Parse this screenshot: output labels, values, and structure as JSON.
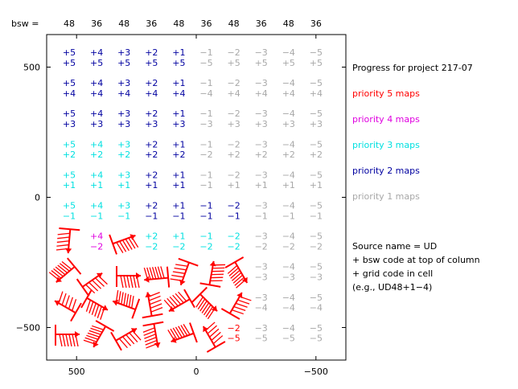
{
  "chart_data": {
    "type": "table",
    "bsw_label": "bsw =",
    "bsw_codes": [
      "48",
      "36",
      "48",
      "36",
      "48",
      "36",
      "48",
      "36",
      "48",
      "36"
    ],
    "grid_codes": [
      [
        "+5",
        "+4",
        "+3",
        "+2",
        "+1",
        "−1",
        "−2",
        "−3",
        "−4",
        "−5"
      ],
      [
        "+5",
        "+5",
        "+5",
        "+5",
        "+5",
        "−5",
        "+5",
        "+5",
        "+5",
        "+5"
      ],
      [
        "+5",
        "+4",
        "+3",
        "+2",
        "+1",
        "−1",
        "−2",
        "−3",
        "−4",
        "−5"
      ],
      [
        "+4",
        "+4",
        "+4",
        "+4",
        "+4",
        "−4",
        "+4",
        "+4",
        "+4",
        "+4"
      ],
      [
        "+5",
        "+4",
        "+3",
        "+2",
        "+1",
        "−1",
        "−2",
        "−3",
        "−4",
        "−5"
      ],
      [
        "+3",
        "+3",
        "+3",
        "+3",
        "+3",
        "−3",
        "+3",
        "+3",
        "+3",
        "+3"
      ],
      [
        "+5",
        "+4",
        "+3",
        "+2",
        "+1",
        "−1",
        "−2",
        "−3",
        "−4",
        "−5"
      ],
      [
        "+2",
        "+2",
        "+2",
        "+2",
        "+2",
        "−2",
        "+2",
        "+2",
        "+2",
        "+2"
      ],
      [
        "+5",
        "+4",
        "+3",
        "+2",
        "+1",
        "−1",
        "−2",
        "−3",
        "−4",
        "−5"
      ],
      [
        "+1",
        "+1",
        "+1",
        "+1",
        "+1",
        "−1",
        "+1",
        "+1",
        "+1",
        "+1"
      ],
      [
        "+5",
        "+4",
        "+3",
        "+2",
        "+1",
        "−1",
        "−2",
        "−3",
        "−4",
        "−5"
      ],
      [
        "−1",
        "−1",
        "−1",
        "−1",
        "−1",
        "−1",
        "−1",
        "−1",
        "−1",
        "−1"
      ],
      [
        "",
        "+4",
        "",
        "+2",
        "+1",
        "−1",
        "−2",
        "−3",
        "−4",
        "−5"
      ],
      [
        "",
        "−2",
        "",
        "−2",
        "−2",
        "−2",
        "−2",
        "−2",
        "−2",
        "−2"
      ],
      [
        "",
        "",
        "",
        "",
        "",
        "",
        "",
        "−3",
        "−4",
        "−5"
      ],
      [
        "",
        "",
        "",
        "",
        "",
        "",
        "",
        "−3",
        "−3",
        "−3"
      ],
      [
        "",
        "",
        "",
        "",
        "",
        "",
        "",
        "−3",
        "−4",
        "−5"
      ],
      [
        "",
        "",
        "",
        "",
        "",
        "",
        "",
        "−4",
        "−4",
        "−4"
      ],
      [
        "",
        "",
        "",
        "",
        "",
        "",
        "−2",
        "−3",
        "−4",
        "−5"
      ],
      [
        "",
        "",
        "",
        "",
        "",
        "",
        "−5",
        "−5",
        "−5",
        "−5"
      ]
    ],
    "cell_priority": [
      [
        2,
        2,
        2,
        2,
        2,
        1,
        1,
        1,
        1,
        1
      ],
      [
        2,
        2,
        2,
        2,
        2,
        1,
        1,
        1,
        1,
        1
      ],
      [
        2,
        2,
        2,
        2,
        2,
        1,
        1,
        1,
        1,
        1
      ],
      [
        3,
        3,
        3,
        2,
        2,
        1,
        1,
        1,
        1,
        1
      ],
      [
        3,
        3,
        3,
        2,
        2,
        1,
        1,
        1,
        1,
        1
      ],
      [
        3,
        3,
        3,
        2,
        2,
        2,
        2,
        1,
        1,
        1
      ],
      [
        0,
        4,
        0,
        3,
        3,
        3,
        3,
        1,
        1,
        1
      ],
      [
        0,
        0,
        0,
        0,
        0,
        0,
        0,
        1,
        1,
        1
      ],
      [
        0,
        0,
        0,
        0,
        0,
        0,
        0,
        1,
        1,
        1
      ],
      [
        0,
        0,
        0,
        0,
        0,
        0,
        5,
        1,
        1,
        1
      ]
    ],
    "priority_colors": {
      "1": "#a8a8a8",
      "2": "#0000a0",
      "3": "#00e0e0",
      "4": "#e000e0",
      "5": "#ff0000"
    },
    "x_ticks": [
      500,
      0,
      -500
    ],
    "y_ticks": [
      500,
      0,
      -500
    ],
    "xlim": [
      625,
      -625
    ],
    "ylim": [
      -625,
      625
    ],
    "grid": false,
    "legend": [
      {
        "label": "Progress for project 217-07",
        "color": "#000000"
      },
      {
        "label": "priority 5 maps",
        "color": "#ff0000"
      },
      {
        "label": "priority 4 maps",
        "color": "#e000e0"
      },
      {
        "label": "priority 3 maps",
        "color": "#00e0e0"
      },
      {
        "label": "priority 2 maps",
        "color": "#0000a0"
      },
      {
        "label": "priority 1 maps",
        "color": "#a8a8a8"
      }
    ],
    "legend_placement": "right",
    "notes": [
      "Source name = UD",
      "+ bsw code at top of column",
      "+ grid code in cell",
      "(e.g., UD48+1−4)"
    ],
    "symbol_color": "#ff0000"
  }
}
